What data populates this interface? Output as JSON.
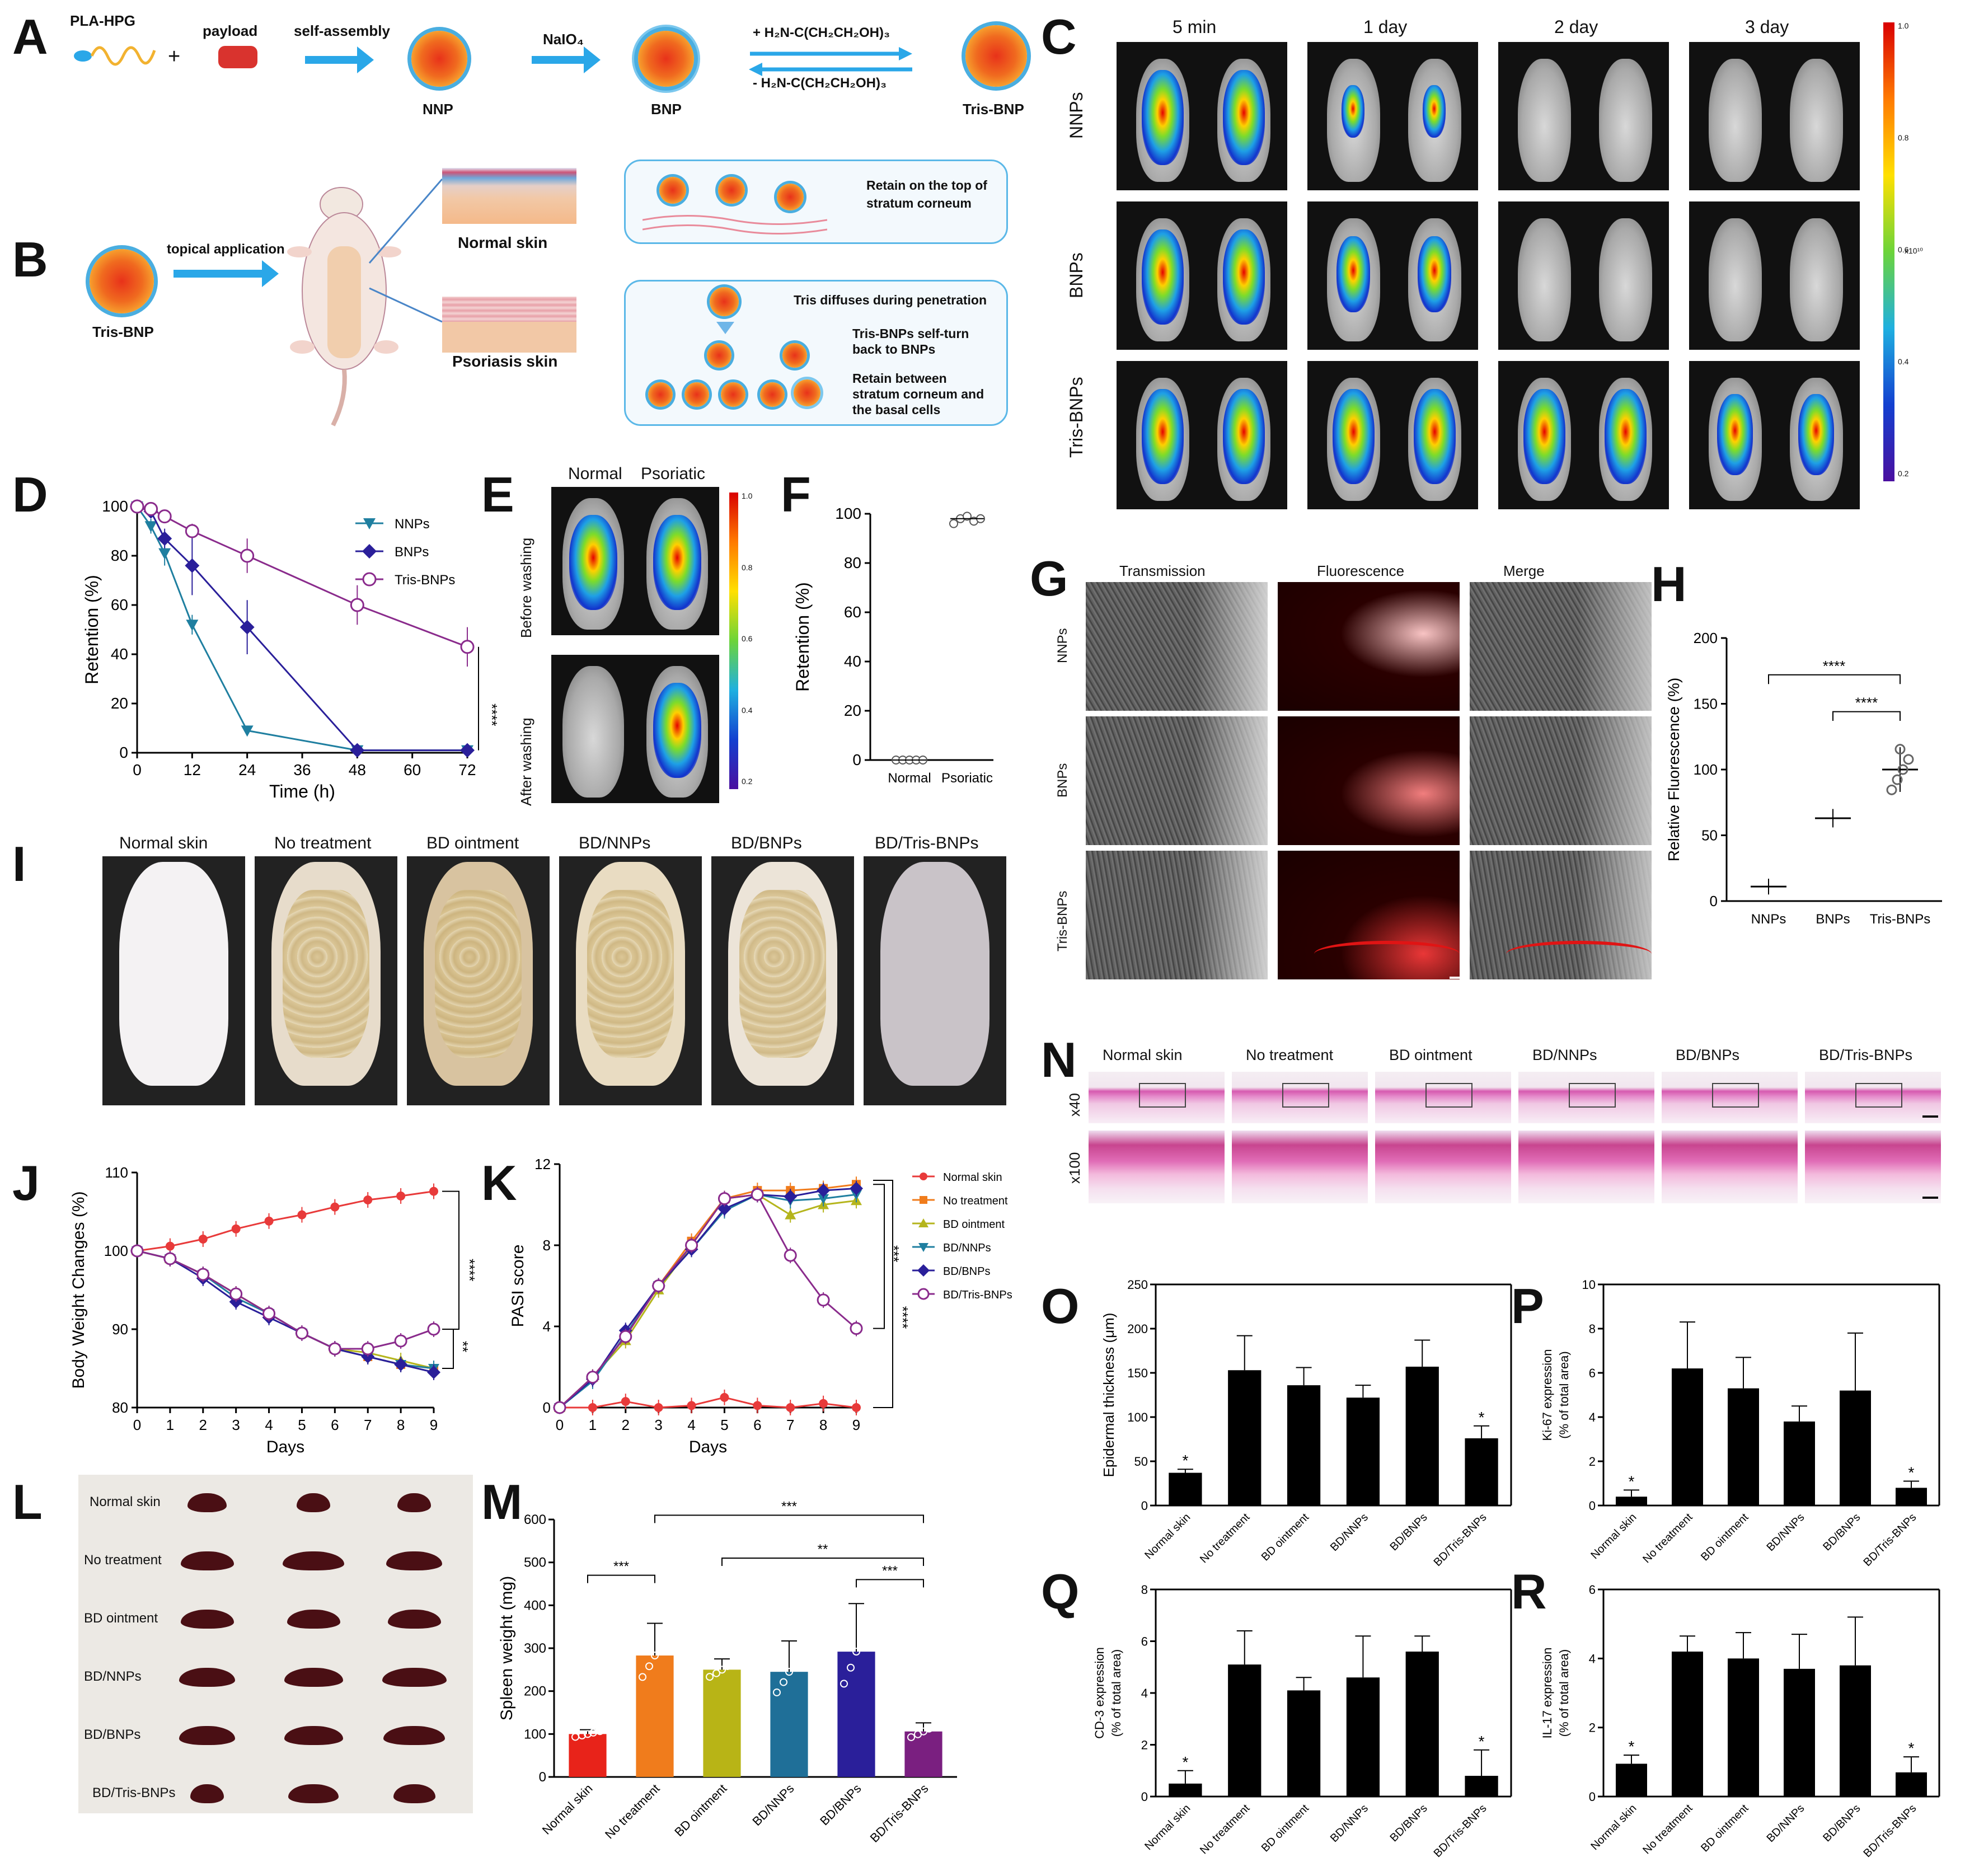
{
  "panels": {
    "A": "A",
    "B": "B",
    "C": "C",
    "D": "D",
    "E": "E",
    "F": "F",
    "G": "G",
    "H": "H",
    "I": "I",
    "J": "J",
    "K": "K",
    "L": "L",
    "M": "M",
    "N": "N",
    "O": "O",
    "P": "P",
    "Q": "Q",
    "R": "R"
  },
  "schemeA": {
    "pla_hpg": "PLA-HPG",
    "payload": "payload",
    "plus": "+",
    "self_assembly": "self-assembly",
    "naio4": "NaIO₄",
    "tris_plus": "+   H₂N-C(CH₂CH₂OH)₃",
    "tris_minus": "-   H₂N-C(CH₂CH₂OH)₃",
    "nnp": "NNP",
    "bnp": "BNP",
    "tris_bnp": "Tris-BNP"
  },
  "schemeB": {
    "tris_bnp": "Tris-BNP",
    "topical": "topical application",
    "normal_skin": "Normal skin",
    "psoriasis_skin": "Psoriasis skin",
    "retain_top": "Retain on the top of",
    "stratum": "stratum corneum",
    "tris_diffuses": "Tris diffuses during penetration",
    "self_turn1": "Tris-BNPs self-turn",
    "self_turn2": "back to BNPs",
    "retain_between1": "Retain between",
    "retain_between2": "stratum corneum and",
    "retain_between3": "the basal cells"
  },
  "panelC": {
    "cols": [
      "5 min",
      "1 day",
      "2 day",
      "3 day"
    ],
    "rows": [
      "NNPs",
      "BNPs",
      "Tris-BNPs"
    ],
    "scale_ticks": [
      "1.0",
      "0.8",
      "0.6",
      "0.4",
      "0.2"
    ],
    "scale_unit": "x10¹⁰"
  },
  "panelE": {
    "cols": [
      "Normal",
      "Psoriatic"
    ],
    "rows": [
      "Before washing",
      "After washing"
    ],
    "scale_ticks": [
      "1.0",
      "0.8",
      "0.6",
      "0.4",
      "0.2"
    ]
  },
  "panelG": {
    "cols": [
      "Transmission",
      "Fluorescence",
      "Merge"
    ],
    "rows": [
      "NNPs",
      "BNPs",
      "Tris-BNPs"
    ]
  },
  "panelI": {
    "labels": [
      "Normal skin",
      "No treatment",
      "BD ointment",
      "BD/NNPs",
      "BD/BNPs",
      "BD/Tris-BNPs"
    ]
  },
  "panelL": {
    "labels": [
      "Normal skin",
      "No treatment",
      "BD ointment",
      "BD/NNPs",
      "BD/BNPs",
      "BD/Tris-BNPs"
    ]
  },
  "panelN": {
    "cols": [
      "Normal skin",
      "No treatment",
      "BD ointment",
      "BD/NNPs",
      "BD/BNPs",
      "BD/Tris-BNPs"
    ],
    "rows": [
      "x40",
      "x100"
    ]
  },
  "chart_data": [
    {
      "id": "D",
      "type": "line",
      "xlabel": "Time (h)",
      "ylabel": "Retention (%)",
      "xlim": [
        0,
        72
      ],
      "ylim": [
        0,
        100
      ],
      "xticks": [
        0,
        12,
        24,
        36,
        48,
        60,
        72
      ],
      "yticks": [
        0,
        20,
        40,
        60,
        80,
        100
      ],
      "sig": "****",
      "series": [
        {
          "name": "NNPs",
          "color": "#1f7fa0",
          "marker": "tri-down",
          "x": [
            0,
            3,
            6,
            12,
            24,
            48,
            72
          ],
          "y": [
            100,
            92,
            81,
            52,
            9,
            1,
            1
          ],
          "err": [
            1,
            3,
            5,
            4,
            2,
            1,
            1
          ]
        },
        {
          "name": "BNPs",
          "color": "#2a1f9a",
          "marker": "diamond",
          "x": [
            0,
            3,
            6,
            12,
            24,
            48,
            72
          ],
          "y": [
            100,
            98,
            87,
            76,
            51,
            1,
            1
          ],
          "err": [
            1,
            2,
            4,
            12,
            11,
            1,
            1
          ]
        },
        {
          "name": "Tris-BNPs",
          "color": "#8a2b8c",
          "marker": "circle",
          "x": [
            0,
            3,
            6,
            12,
            24,
            48,
            72
          ],
          "y": [
            100,
            99,
            96,
            90,
            80,
            60,
            43
          ],
          "err": [
            1,
            1,
            2,
            3,
            7,
            8,
            8
          ]
        }
      ]
    },
    {
      "id": "F",
      "type": "scatter",
      "ylabel": "Retention (%)",
      "ylim": [
        0,
        100
      ],
      "yticks": [
        0,
        20,
        40,
        60,
        80,
        100
      ],
      "categories": [
        "Normal",
        "Psoriatic"
      ],
      "values": [
        0,
        98
      ],
      "points": [
        [
          0,
          0,
          0,
          0,
          0
        ],
        [
          96,
          98,
          99,
          97,
          98
        ]
      ]
    },
    {
      "id": "H",
      "type": "scatter",
      "ylabel": "Relative Fluorescence (%)",
      "ylim": [
        0,
        200
      ],
      "yticks": [
        0,
        50,
        100,
        150,
        200
      ],
      "categories": [
        "NNPs",
        "BNPs",
        "Tris-BNPs"
      ],
      "values": [
        11,
        63,
        100
      ],
      "err": [
        6,
        7,
        17
      ],
      "sig": [
        "****",
        "****"
      ]
    },
    {
      "id": "J",
      "type": "line",
      "xlabel": "Days",
      "ylabel": "Body Weight Changes (%)",
      "xlim": [
        0,
        9
      ],
      "ylim": [
        80,
        110
      ],
      "xticks": [
        0,
        1,
        2,
        3,
        4,
        5,
        6,
        7,
        8,
        9
      ],
      "yticks": [
        80,
        90,
        100,
        110
      ],
      "sig": [
        "****",
        "**"
      ],
      "series": [
        {
          "name": "Normal skin",
          "color": "#e83a3a",
          "y": [
            100,
            100.6,
            101.5,
            102.8,
            103.8,
            104.6,
            105.6,
            106.5,
            107,
            107.6
          ]
        },
        {
          "name": "No treatment",
          "color": "#f07c1c",
          "y": [
            100,
            99,
            97,
            94.5,
            92,
            89.5,
            87.5,
            86.5,
            85.5,
            85
          ]
        },
        {
          "name": "BD ointment",
          "color": "#b5b51c",
          "y": [
            100,
            99,
            97,
            94.5,
            92,
            89.5,
            87.5,
            87,
            86,
            85
          ]
        },
        {
          "name": "BD/NNPs",
          "color": "#1f7fa0",
          "y": [
            100,
            99,
            97,
            94,
            92,
            89.5,
            87.5,
            86.5,
            85.5,
            85
          ]
        },
        {
          "name": "BD/BNPs",
          "color": "#2a1f9a",
          "y": [
            100,
            99,
            96.5,
            93.5,
            91.5,
            89.5,
            87.5,
            86.5,
            85.5,
            84.5
          ]
        },
        {
          "name": "BD/Tris-BNPs",
          "color": "#8a2b8c",
          "y": [
            100,
            99,
            97,
            94.5,
            92,
            89.5,
            87.5,
            87.5,
            88.5,
            90
          ]
        }
      ]
    },
    {
      "id": "K",
      "type": "line",
      "xlabel": "Days",
      "ylabel": "PASI score",
      "xlim": [
        0,
        9
      ],
      "ylim": [
        0,
        12
      ],
      "xticks": [
        0,
        1,
        2,
        3,
        4,
        5,
        6,
        7,
        8,
        9
      ],
      "yticks": [
        0,
        4,
        8,
        12
      ],
      "sig": [
        "***",
        "****"
      ],
      "series": [
        {
          "name": "Normal skin",
          "color": "#e83a3a",
          "y": [
            0,
            0,
            0.3,
            0,
            0.1,
            0.5,
            0.1,
            0,
            0.2,
            0
          ]
        },
        {
          "name": "No treatment",
          "color": "#f07c1c",
          "y": [
            0,
            1.5,
            3.5,
            6,
            8.2,
            10.3,
            10.7,
            10.7,
            10.8,
            11
          ]
        },
        {
          "name": "BD ointment",
          "color": "#b5b51c",
          "y": [
            0,
            1.5,
            3.3,
            5.8,
            8,
            10.3,
            10.5,
            9.5,
            10,
            10.2
          ]
        },
        {
          "name": "BD/NNPs",
          "color": "#1f7fa0",
          "y": [
            0,
            1.3,
            3.6,
            6,
            7.8,
            9.7,
            10.5,
            10.2,
            10.3,
            10.5
          ]
        },
        {
          "name": "BD/BNPs",
          "color": "#2a1f9a",
          "y": [
            0,
            1.4,
            3.8,
            6,
            7.8,
            9.8,
            10.5,
            10.4,
            10.7,
            10.8
          ]
        },
        {
          "name": "BD/Tris-BNPs",
          "color": "#8a2b8c",
          "y": [
            0,
            1.5,
            3.5,
            6,
            8,
            10.3,
            10.5,
            7.5,
            5.3,
            3.9
          ]
        }
      ]
    },
    {
      "id": "M",
      "type": "bar",
      "ylabel": "Spleen weight (mg)",
      "ylim": [
        0,
        600
      ],
      "yticks": [
        0,
        100,
        200,
        300,
        400,
        500,
        600
      ],
      "categories": [
        "Normal skin",
        "No treatment",
        "BD ointment",
        "BD/NNPs",
        "BD/BNPs",
        "BD/Tris-BNPs"
      ],
      "values": [
        100,
        283,
        250,
        245,
        292,
        106
      ],
      "err": [
        10,
        75,
        25,
        72,
        112,
        20
      ],
      "colors": [
        "#e8231a",
        "#f07c1c",
        "#b8b416",
        "#1f6f98",
        "#2a1f9a",
        "#7a1f80"
      ],
      "sig": [
        "***",
        "***",
        "**",
        "***"
      ]
    },
    {
      "id": "O",
      "type": "bar",
      "ylabel": "Epidermal thickness (μm)",
      "ylim": [
        0,
        250
      ],
      "yticks": [
        0,
        50,
        100,
        150,
        200,
        250
      ],
      "categories": [
        "Normal skin",
        "No treatment",
        "BD ointment",
        "BD/NNPs",
        "BD/BNPs",
        "BD/Tris-BNPs"
      ],
      "values": [
        37,
        153,
        136,
        122,
        157,
        76
      ],
      "err": [
        4,
        39,
        20,
        14,
        30,
        14
      ],
      "sig": [
        "*",
        "",
        "",
        "",
        "",
        "*"
      ]
    },
    {
      "id": "P",
      "type": "bar",
      "ylabel": "Ki-67 expression",
      "ylabel2": "(% of total area)",
      "ylim": [
        0,
        10
      ],
      "yticks": [
        0,
        2,
        4,
        6,
        8,
        10
      ],
      "categories": [
        "Normal skin",
        "No treatment",
        "BD ointment",
        "BD/NNPs",
        "BD/BNPs",
        "BD/Tris-BNPs"
      ],
      "values": [
        0.4,
        6.2,
        5.3,
        3.8,
        5.2,
        0.8
      ],
      "err": [
        0.3,
        2.1,
        1.4,
        0.7,
        2.6,
        0.3
      ],
      "sig": [
        "*",
        "",
        "",
        "",
        "",
        "*"
      ]
    },
    {
      "id": "Q",
      "type": "bar",
      "ylabel": "CD-3 expression",
      "ylabel2": "(% of total area)",
      "ylim": [
        0,
        8
      ],
      "yticks": [
        0,
        2,
        4,
        6,
        8
      ],
      "categories": [
        "Normal skin",
        "No treatment",
        "BD ointment",
        "BD/NNPs",
        "BD/BNPs",
        "BD/Tris-BNPs"
      ],
      "values": [
        0.5,
        5.1,
        4.1,
        4.6,
        5.6,
        0.8
      ],
      "err": [
        0.5,
        1.3,
        0.5,
        1.6,
        0.6,
        1.0
      ],
      "sig": [
        "*",
        "",
        "",
        "",
        "",
        "*"
      ]
    },
    {
      "id": "R",
      "type": "bar",
      "ylabel": "IL-17 expression",
      "ylabel2": "(% of total area)",
      "ylim": [
        0,
        6
      ],
      "yticks": [
        0,
        2,
        4,
        6
      ],
      "categories": [
        "Normal skin",
        "No treatment",
        "BD ointment",
        "BD/NNPs",
        "BD/BNPs",
        "BD/Tris-BNPs"
      ],
      "values": [
        0.95,
        4.2,
        4.0,
        3.7,
        3.8,
        0.7
      ],
      "err": [
        0.25,
        0.45,
        0.75,
        1.0,
        1.4,
        0.45
      ],
      "sig": [
        "*",
        "",
        "",
        "",
        "",
        "*"
      ]
    }
  ]
}
